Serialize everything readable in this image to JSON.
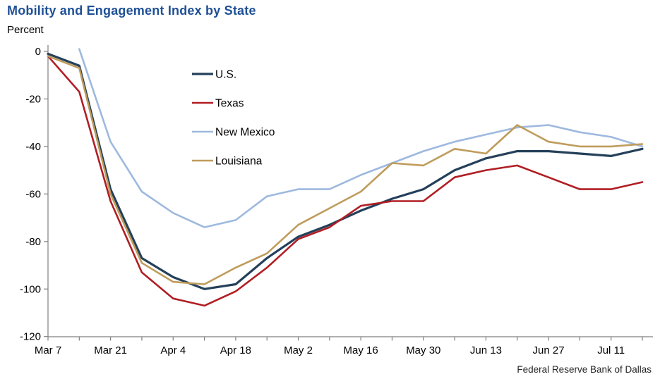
{
  "title": "Mobility and Engagement Index by State",
  "y_axis_label": "Percent",
  "source": "Federal Reserve Bank of Dallas",
  "colors": {
    "title": "#1F5096",
    "axis": "#808080",
    "tick_text": "#000000"
  },
  "chart_data": {
    "type": "line",
    "x": [
      "Mar 7",
      "Mar 14",
      "Mar 21",
      "Mar 28",
      "Apr 4",
      "Apr 11",
      "Apr 18",
      "Apr 25",
      "May 2",
      "May 9",
      "May 16",
      "May 23",
      "May 30",
      "Jun 6",
      "Jun 13",
      "Jun 20",
      "Jun 27",
      "Jul 4",
      "Jul 11",
      "Jul 18"
    ],
    "x_tick_labels": [
      "Mar 7",
      "Mar 21",
      "Apr 4",
      "Apr 18",
      "May 2",
      "May 16",
      "May 30",
      "Jun 13",
      "Jun 27",
      "Jul 11"
    ],
    "y_ticks": [
      0,
      -20,
      -40,
      -60,
      -80,
      -100,
      -120
    ],
    "ylim": [
      -120,
      2
    ],
    "grid": false,
    "legend_position": "upper-left-inside",
    "series": [
      {
        "name": "U.S.",
        "color": "#24405A",
        "width": 3.2,
        "values": [
          -1,
          -6,
          -58,
          -87,
          -95,
          -100,
          -98,
          -87,
          -78,
          -73,
          -67,
          -62,
          -58,
          -50,
          -45,
          -42,
          -42,
          -43,
          -44,
          -41
        ]
      },
      {
        "name": "Texas",
        "color": "#B01E24",
        "width": 2.6,
        "values": [
          -2,
          -17,
          -63,
          -93,
          -104,
          -107,
          -101,
          -91,
          -79,
          -74,
          -65,
          -63,
          -63,
          -53,
          -50,
          -48,
          -53,
          -58,
          -58,
          -55
        ]
      },
      {
        "name": "New Mexico",
        "color": "#9EB9DF",
        "width": 2.6,
        "values": [
          null,
          1,
          -38,
          -59,
          -68,
          -74,
          -71,
          -61,
          -58,
          -58,
          -52,
          -47,
          -42,
          -38,
          -35,
          -32,
          -31,
          -34,
          -36,
          -40
        ]
      },
      {
        "name": "Louisiana",
        "color": "#BF9C5C",
        "width": 2.6,
        "values": [
          -2,
          -7,
          -60,
          -89,
          -97,
          -98,
          -91,
          -85,
          -73,
          -66,
          -59,
          -47,
          -48,
          -41,
          -43,
          -31,
          -38,
          -40,
          -40,
          -39
        ]
      }
    ]
  }
}
